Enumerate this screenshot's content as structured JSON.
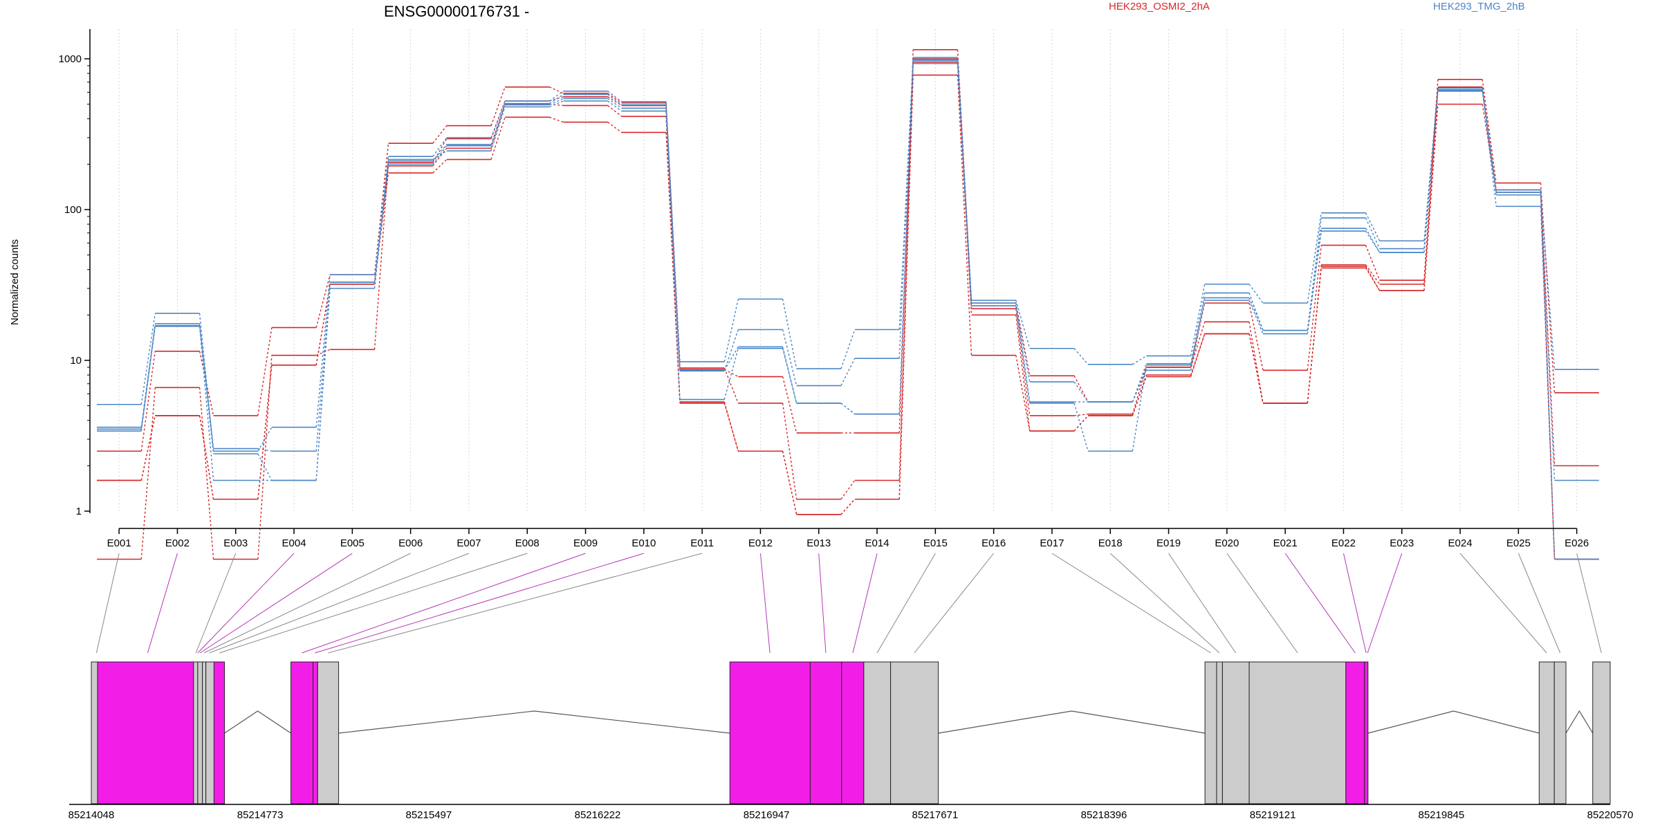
{
  "chart_data": {
    "type": "line",
    "title": "ENSG00000176731 -",
    "ylabel": "Normalized counts",
    "xlabel": "",
    "y_scale": "log",
    "ylim": [
      0.45,
      1600
    ],
    "grid": "vertical dotted lines at each exon bin",
    "legend_placement": "top-right",
    "legend": [
      {
        "name": "HEK293_OSMI2_2hA",
        "color": "#d62728"
      },
      {
        "name": "HEK293_TMG_2hB",
        "color": "#4a86c6"
      }
    ],
    "y_ticks": [
      {
        "value": 1,
        "label": "1"
      },
      {
        "value": 10,
        "label": "10"
      },
      {
        "value": 100,
        "label": "100"
      },
      {
        "value": 1000,
        "label": "1000"
      }
    ],
    "categories": [
      "E001",
      "E002",
      "E003",
      "E004",
      "E005",
      "E006",
      "E007",
      "E008",
      "E009",
      "E010",
      "E011",
      "E012",
      "E013",
      "E014",
      "E015",
      "E016",
      "E017",
      "E018",
      "E019",
      "E020",
      "E021",
      "E022",
      "E023",
      "E024",
      "E025",
      "E026"
    ],
    "series": [
      {
        "group": "HEK293_OSMI2_2hA",
        "color": "#d62728",
        "values": [
          2.5,
          11.5,
          4.3,
          16.5,
          37,
          275,
          360,
          650,
          590,
          510,
          8.7,
          7.8,
          3.3,
          3.3,
          1150,
          24,
          7.9,
          5.3,
          9,
          24,
          8.6,
          58,
          34,
          730,
          150,
          6.1
        ]
      },
      {
        "group": "HEK293_OSMI2_2hA",
        "color": "#d62728",
        "values": [
          0.48,
          6.6,
          0.48,
          10.8,
          11.8,
          205,
          295,
          525,
          560,
          490,
          8.9,
          5.2,
          1.2,
          1.6,
          1000,
          22,
          4.3,
          4.4,
          9,
          18,
          5.2,
          43,
          32,
          650,
          130,
          2
        ]
      },
      {
        "group": "HEK293_OSMI2_2hA",
        "color": "#d62728",
        "values": [
          1.6,
          4.3,
          1.2,
          9.3,
          32,
          195,
          255,
          500,
          490,
          415,
          5.3,
          2.5,
          0.95,
          1.2,
          950,
          20,
          3.4,
          4.3,
          8,
          15,
          5.2,
          42,
          29,
          620,
          130,
          0.48
        ]
      },
      {
        "group": "HEK293_OSMI2_2hA",
        "color": "#d62728",
        "values": [
          1.6,
          4.3,
          1.2,
          9.3,
          32,
          175,
          215,
          410,
          380,
          325,
          5.2,
          2.5,
          0.95,
          1.2,
          780,
          10.8,
          3.4,
          4.3,
          7.8,
          15,
          5.2,
          41,
          29,
          500,
          135,
          0.48
        ]
      },
      {
        "group": "HEK293_TMG_2hB",
        "color": "#4a86c6",
        "values": [
          5.1,
          20.5,
          2.5,
          3.6,
          37,
          225,
          300,
          525,
          610,
          520,
          9.8,
          25.5,
          8.8,
          16,
          1020,
          25,
          12,
          9.4,
          10.7,
          32,
          24,
          95,
          62,
          640,
          130,
          8.7
        ]
      },
      {
        "group": "HEK293_TMG_2hB",
        "color": "#4a86c6",
        "values": [
          3.6,
          17.5,
          2.6,
          2.5,
          33,
          210,
          270,
          505,
          580,
          495,
          8.5,
          16,
          6.8,
          10.3,
          975,
          23,
          7.2,
          5.3,
          9.5,
          28,
          15.8,
          88,
          55,
          625,
          125,
          1.6
        ]
      },
      {
        "group": "HEK293_TMG_2hB",
        "color": "#4a86c6",
        "values": [
          3.5,
          17,
          2.4,
          1.6,
          33,
          200,
          265,
          495,
          545,
          470,
          8.6,
          12.3,
          5.2,
          4.4,
          990,
          24,
          5.2,
          2.5,
          9.3,
          26,
          15.8,
          75,
          52,
          610,
          135,
          0.48
        ]
      },
      {
        "group": "HEK293_TMG_2hB",
        "color": "#4a86c6",
        "values": [
          3.4,
          16.8,
          1.6,
          1.6,
          30,
          215,
          245,
          480,
          525,
          450,
          5.5,
          12,
          5.2,
          4.4,
          930,
          23,
          5.3,
          5.3,
          8.6,
          25,
          15,
          72,
          52,
          620,
          105,
          0.48
        ]
      }
    ],
    "gene_model": {
      "coordinate_ticks": [
        85214048,
        85214773,
        85215497,
        85216222,
        85216947,
        85217671,
        85218396,
        85219121,
        85219845,
        85220570
      ],
      "genomic_start": 85214048,
      "genomic_end": 85220570,
      "exons": [
        {
          "start": 85214048,
          "end": 85214075,
          "color": "#cccccc"
        },
        {
          "start": 85214075,
          "end": 85214487,
          "color": "#f21ee8"
        },
        {
          "start": 85214487,
          "end": 85214505,
          "color": "#cccccc"
        },
        {
          "start": 85214505,
          "end": 85214525,
          "color": "#cccccc"
        },
        {
          "start": 85214525,
          "end": 85214540,
          "color": "#cccccc"
        },
        {
          "start": 85214540,
          "end": 85214575,
          "color": "#cccccc"
        },
        {
          "start": 85214575,
          "end": 85214620,
          "color": "#f21ee8"
        },
        {
          "start": 85214905,
          "end": 85215000,
          "color": "#f21ee8"
        },
        {
          "start": 85215000,
          "end": 85215020,
          "color": "#f21ee8"
        },
        {
          "start": 85215020,
          "end": 85215110,
          "color": "#cccccc"
        },
        {
          "start": 85216790,
          "end": 85217135,
          "color": "#f21ee8"
        },
        {
          "start": 85217135,
          "end": 85217270,
          "color": "#f21ee8"
        },
        {
          "start": 85217270,
          "end": 85217365,
          "color": "#f21ee8"
        },
        {
          "start": 85217365,
          "end": 85217480,
          "color": "#cccccc"
        },
        {
          "start": 85217480,
          "end": 85217685,
          "color": "#cccccc"
        },
        {
          "start": 85218830,
          "end": 85218880,
          "color": "#cccccc"
        },
        {
          "start": 85218880,
          "end": 85218905,
          "color": "#cccccc"
        },
        {
          "start": 85218905,
          "end": 85219020,
          "color": "#cccccc"
        },
        {
          "start": 85219020,
          "end": 85219435,
          "color": "#cccccc"
        },
        {
          "start": 85219435,
          "end": 85219515,
          "color": "#f21ee8"
        },
        {
          "start": 85219515,
          "end": 85219530,
          "color": "#f21ee8"
        },
        {
          "start": 85220265,
          "end": 85220330,
          "color": "#cccccc"
        },
        {
          "start": 85220330,
          "end": 85220380,
          "color": "#cccccc"
        },
        {
          "start": 85220495,
          "end": 85220570,
          "color": "#cccccc"
        }
      ],
      "introns": [
        {
          "start": 85214620,
          "end": 85214905
        },
        {
          "start": 85215110,
          "end": 85216790
        },
        {
          "start": 85217685,
          "end": 85218830
        },
        {
          "start": 85219530,
          "end": 85220265
        },
        {
          "start": 85220380,
          "end": 85220495
        }
      ],
      "bin_links": [
        {
          "x": 85214070,
          "color": "#888888"
        },
        {
          "x": 85214290,
          "color": "#b535b5"
        },
        {
          "x": 85214497,
          "color": "#888888"
        },
        {
          "x": 85214505,
          "color": "#b535b5"
        },
        {
          "x": 85214515,
          "color": "#b535b5"
        },
        {
          "x": 85214532,
          "color": "#888888"
        },
        {
          "x": 85214555,
          "color": "#888888"
        },
        {
          "x": 85214598,
          "color": "#888888"
        },
        {
          "x": 85214952,
          "color": "#b535b5"
        },
        {
          "x": 85215008,
          "color": "#b535b5"
        },
        {
          "x": 85215065,
          "color": "#888888"
        },
        {
          "x": 85216962,
          "color": "#b535b5"
        },
        {
          "x": 85217202,
          "color": "#b535b5"
        },
        {
          "x": 85217318,
          "color": "#b535b5"
        },
        {
          "x": 85217422,
          "color": "#888888"
        },
        {
          "x": 85217582,
          "color": "#888888"
        },
        {
          "x": 85218855,
          "color": "#888888"
        },
        {
          "x": 85218892,
          "color": "#888888"
        },
        {
          "x": 85218962,
          "color": "#888888"
        },
        {
          "x": 85219228,
          "color": "#888888"
        },
        {
          "x": 85219475,
          "color": "#b535b5"
        },
        {
          "x": 85219522,
          "color": "#b535b5"
        },
        {
          "x": 85219528,
          "color": "#b535b5"
        },
        {
          "x": 85220297,
          "color": "#888888"
        },
        {
          "x": 85220355,
          "color": "#888888"
        },
        {
          "x": 85220532,
          "color": "#888888"
        }
      ]
    }
  }
}
